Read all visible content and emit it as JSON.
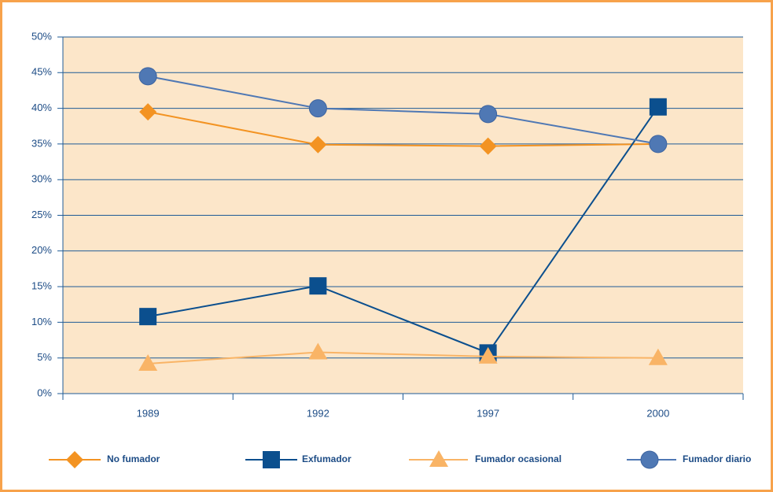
{
  "chart_data": {
    "type": "line",
    "categories": [
      "1989",
      "1992",
      "1997",
      "2000"
    ],
    "series": [
      {
        "name": "No fumador",
        "color": "#f39322",
        "marker": "diamond",
        "values": [
          39.5,
          34.9,
          34.7,
          35.0
        ]
      },
      {
        "name": "Exfumador",
        "color": "#0b4f8e",
        "marker": "square",
        "values": [
          10.8,
          15.1,
          5.7,
          40.2
        ]
      },
      {
        "name": "Fumador ocasional",
        "color": "#f9b466",
        "marker": "triangle",
        "values": [
          4.2,
          5.8,
          5.2,
          5.0
        ]
      },
      {
        "name": "Fumador diario",
        "color": "#4f78b4",
        "marker": "circle",
        "values": [
          44.5,
          40.0,
          39.2,
          35.0
        ]
      }
    ],
    "ylim": [
      0,
      50
    ],
    "yticks": [
      {
        "value": 0,
        "label": "0%"
      },
      {
        "value": 5,
        "label": "5%"
      },
      {
        "value": 10,
        "label": "10%"
      },
      {
        "value": 15,
        "label": "15%"
      },
      {
        "value": 20,
        "label": "20%"
      },
      {
        "value": 25,
        "label": "25%"
      },
      {
        "value": 30,
        "label": "30%"
      },
      {
        "value": 35,
        "label": "35%"
      },
      {
        "value": 40,
        "label": "40%"
      },
      {
        "value": 45,
        "label": "45%"
      },
      {
        "value": 50,
        "label": "50%"
      }
    ],
    "grid": true,
    "legend": "bottom"
  }
}
